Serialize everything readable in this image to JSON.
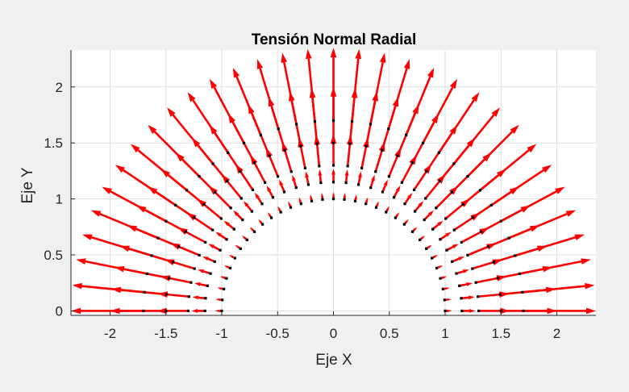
{
  "chart_data": {
    "type": "quiver",
    "title": "Tensión Normal Radial",
    "xlabel": "Eje X",
    "ylabel": "Eje Y",
    "xlim": [
      -2.35,
      2.35
    ],
    "ylim": [
      -0.04,
      2.33
    ],
    "xticks": [
      -2,
      -1.5,
      -1,
      -0.5,
      0,
      0.5,
      1,
      1.5,
      2
    ],
    "yticks": [
      0,
      0.5,
      1,
      1.5,
      2
    ],
    "xtick_labels": [
      "-2",
      "-1.5",
      "-1",
      "-0.5",
      "0",
      "0.5",
      "1",
      "1.5",
      "2"
    ],
    "ytick_labels": [
      "0",
      "0.5",
      "1",
      "1.5",
      "2"
    ],
    "grid": true,
    "series": [
      {
        "marker": "black-dot",
        "arrow_color": "#ff0000",
        "angles_deg": [
          0,
          5.625,
          11.25,
          16.875,
          22.5,
          28.125,
          33.75,
          39.375,
          45,
          50.625,
          56.25,
          61.875,
          67.5,
          73.125,
          78.75,
          84.375,
          90,
          95.625,
          101.25,
          106.875,
          112.5,
          118.125,
          123.75,
          129.375,
          135,
          140.625,
          146.25,
          151.875,
          157.5,
          163.125,
          168.75,
          174.375,
          180
        ],
        "radii": [
          1.0,
          1.15,
          1.3,
          1.5,
          1.7
        ],
        "arrow_tip_radius": [
          1.06,
          1.27,
          1.58,
          2.0,
          2.35
        ]
      }
    ]
  }
}
